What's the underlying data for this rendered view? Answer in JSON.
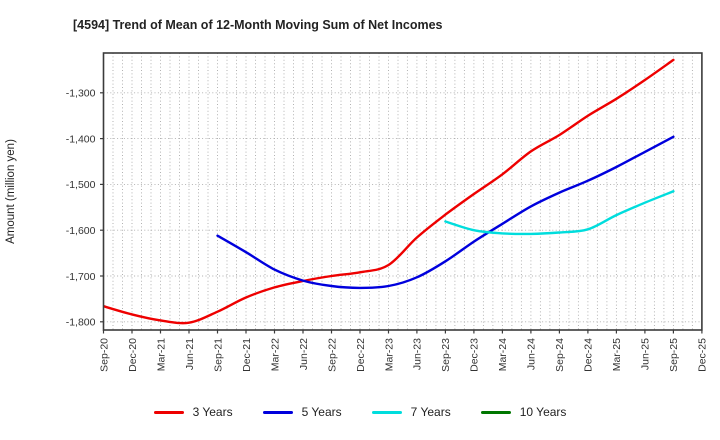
{
  "chart_data": {
    "type": "line",
    "title": "[4594]  Trend of Mean of 12-Month Moving Sum of Net Incomes",
    "ylabel": "Amount (million yen)",
    "xlabel": "",
    "ylim": [
      -1818,
      -1213
    ],
    "grid": true,
    "grid_minor_x_months": 1,
    "legend_position": "bottom",
    "x_tick_labels": [
      "Sep-20",
      "Dec-20",
      "Mar-21",
      "Jun-21",
      "Sep-21",
      "Dec-21",
      "Mar-22",
      "Jun-22",
      "Sep-22",
      "Dec-22",
      "Mar-23",
      "Jun-23",
      "Sep-23",
      "Dec-23",
      "Mar-24",
      "Jun-24",
      "Sep-24",
      "Dec-24",
      "Mar-25",
      "Jun-25",
      "Sep-25",
      "Dec-25"
    ],
    "y_tick_labels": [
      "-1,300",
      "-1,400",
      "-1,500",
      "-1,600",
      "-1,700",
      "-1,800"
    ],
    "y_tick_values": [
      -1300,
      -1400,
      -1500,
      -1600,
      -1700,
      -1800
    ],
    "months_per_point": 3,
    "series": [
      {
        "name": "3 Years",
        "color": "#ee0000",
        "start_label": "Sep-20",
        "start_month": 0,
        "values": [
          -1766,
          -1784,
          -1797,
          -1802,
          -1778,
          -1747,
          -1725,
          -1711,
          -1700,
          -1692,
          -1676,
          -1616,
          -1566,
          -1521,
          -1478,
          -1428,
          -1392,
          -1350,
          -1313,
          -1272,
          -1228
        ]
      },
      {
        "name": "5 Years",
        "color": "#0000dd",
        "start_label": "Sep-21",
        "start_month": 12,
        "values": [
          -1612,
          -1648,
          -1686,
          -1710,
          -1722,
          -1726,
          -1722,
          -1703,
          -1668,
          -1625,
          -1586,
          -1548,
          -1518,
          -1492,
          -1462,
          -1429,
          -1396
        ]
      },
      {
        "name": "7 Years",
        "color": "#00dddd",
        "start_label": "Sep-23",
        "start_month": 36,
        "values": [
          -1581,
          -1600,
          -1607,
          -1608,
          -1605,
          -1598,
          -1567,
          -1540,
          -1515
        ]
      },
      {
        "name": "10 Years",
        "color": "#007700",
        "start_label": null,
        "start_month": null,
        "values": []
      }
    ],
    "style": {
      "grid_color": "#ababab",
      "border_color": "#3b3b3b",
      "tick_label_color": "#333333",
      "title_color": "#222222"
    }
  }
}
